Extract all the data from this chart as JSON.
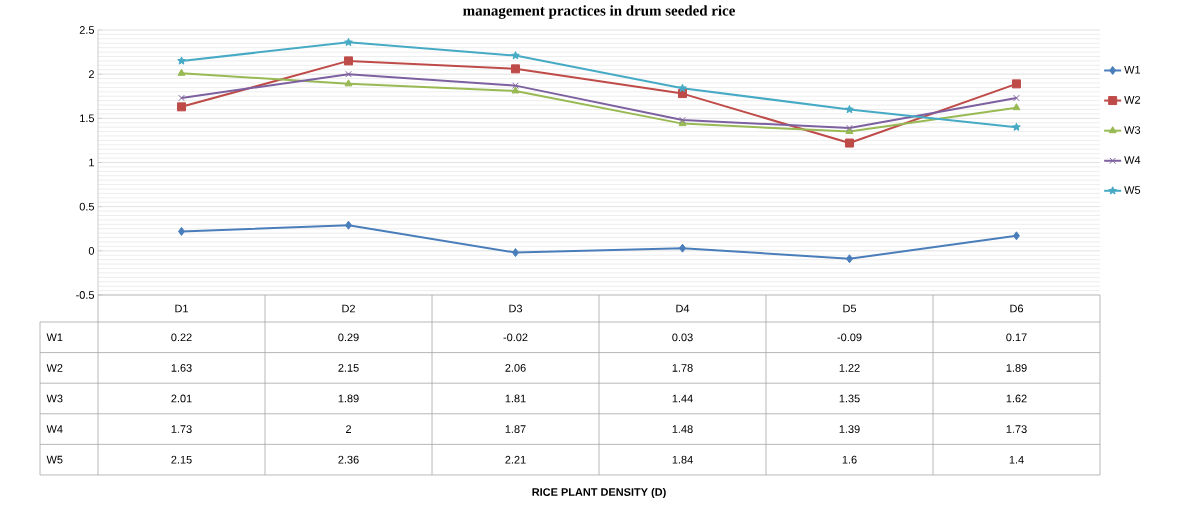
{
  "chart_data": {
    "type": "line",
    "title": "management practices in drum seeded rice",
    "annotations": [
      "RICE PLANT DENSITY (D)"
    ],
    "categories": [
      "D1",
      "D2",
      "D3",
      "D4",
      "D5",
      "D6"
    ],
    "series": [
      {
        "name": "W1",
        "color": "#4a7ebb",
        "marker": "diamond",
        "values": [
          0.22,
          0.29,
          -0.02,
          0.03,
          -0.09,
          0.17
        ]
      },
      {
        "name": "W2",
        "color": "#be4b48",
        "marker": "square",
        "values": [
          1.63,
          2.15,
          2.06,
          1.78,
          1.22,
          1.89
        ]
      },
      {
        "name": "W3",
        "color": "#98b954",
        "marker": "triangle",
        "values": [
          2.01,
          1.89,
          1.81,
          1.44,
          1.35,
          1.62
        ]
      },
      {
        "name": "W4",
        "color": "#7d60a0",
        "marker": "cross",
        "values": [
          1.73,
          2,
          1.87,
          1.48,
          1.39,
          1.73
        ]
      },
      {
        "name": "W5",
        "color": "#46aac5",
        "marker": "star",
        "values": [
          2.15,
          2.36,
          2.21,
          1.84,
          1.6,
          1.4
        ]
      }
    ],
    "ylim": [
      -0.5,
      2.5
    ],
    "yticks": [
      -0.5,
      0,
      0.5,
      1,
      1.5,
      2,
      2.5
    ],
    "grid": "y",
    "legend": "right",
    "data_labels": true
  }
}
